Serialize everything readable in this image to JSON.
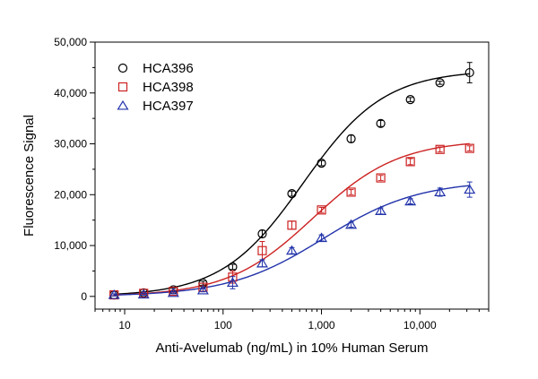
{
  "chart_data": {
    "type": "scatter",
    "title": "",
    "xlabel": "Anti-Avelumab (ng/mL) in 10% Human Serum",
    "ylabel": "Fluorescence Signal",
    "x_scale": "log",
    "xlim": [
      5,
      50000
    ],
    "ylim": [
      -2500,
      50000
    ],
    "x_ticks": [
      10,
      100,
      1000,
      10000
    ],
    "x_tick_labels": [
      "10",
      "100",
      "1,000",
      "10,000"
    ],
    "y_ticks": [
      0,
      10000,
      20000,
      30000,
      40000,
      50000
    ],
    "y_tick_labels": [
      "0",
      "10,000",
      "20,000",
      "30,000",
      "40,000",
      "50,000"
    ],
    "grid": false,
    "legend_position": "top-left",
    "x": [
      7.8,
      15.6,
      31.25,
      62.5,
      125,
      250,
      500,
      1000,
      2000,
      4000,
      8000,
      16000,
      32000
    ],
    "series": [
      {
        "name": "HCA396",
        "marker": "circle",
        "color": "#000000",
        "values": [
          300,
          700,
          1300,
          2600,
          5800,
          12300,
          20200,
          26200,
          31000,
          34000,
          38700,
          42000,
          44000
        ],
        "errors": [
          200,
          200,
          300,
          400,
          500,
          700,
          500,
          500,
          700,
          600,
          400,
          300,
          2000
        ],
        "fit": {
          "bottom": 0,
          "top": 44500,
          "ec50": 650,
          "hill": 1.05
        }
      },
      {
        "name": "HCA398",
        "marker": "square",
        "color": "#cc2222",
        "values": [
          300,
          600,
          1000,
          1800,
          3800,
          9000,
          14000,
          17000,
          20500,
          23300,
          26500,
          28900,
          29100
        ],
        "errors": [
          200,
          200,
          200,
          300,
          1200,
          1800,
          800,
          500,
          500,
          500,
          600,
          500,
          500
        ],
        "fit": {
          "bottom": 0,
          "top": 30800,
          "ec50": 820,
          "hill": 1.0
        }
      },
      {
        "name": "HCA397",
        "marker": "triangle",
        "color": "#2233aa",
        "values": [
          300,
          400,
          700,
          1200,
          2700,
          6500,
          9000,
          11500,
          14100,
          16800,
          18700,
          20500,
          21000
        ],
        "errors": [
          200,
          200,
          200,
          300,
          1200,
          700,
          600,
          600,
          500,
          600,
          500,
          800,
          1500
        ],
        "fit": {
          "bottom": 0,
          "top": 22800,
          "ec50": 1050,
          "hill": 0.9
        }
      }
    ]
  }
}
